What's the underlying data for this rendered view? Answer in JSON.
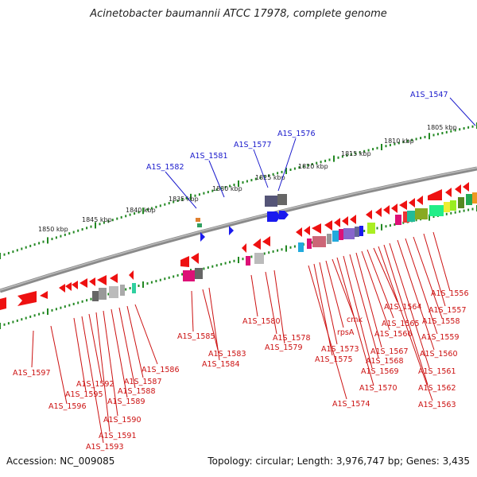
{
  "title": "Acinetobacter baumannii ATCC 17978, complete genome",
  "footer": {
    "accession": "Accession: NC_009085",
    "topology": "Topology: circular; Length: 3,976,747 bp; Genes: 3,435"
  },
  "colors": {
    "backbone": "#808080",
    "scale_ticks": "#228822",
    "forward_labels": "#1a1acc",
    "reverse_labels": "#cc1111",
    "forward_genes": "#1a1aee",
    "reverse_genes": "#ee1111"
  },
  "scale_labels": [
    "1805 kbp",
    "1810 kbp",
    "1815 kbp",
    "1820 kbp",
    "1825 kbp",
    "1830 kbp",
    "1835 kbp",
    "1840 kbp",
    "1845 kbp",
    "1850 kbp"
  ],
  "forward_labels": [
    "A1S_1547",
    "A1S_1576",
    "A1S_1577",
    "A1S_1581",
    "A1S_1582"
  ],
  "reverse_labels": [
    "A1S_1556",
    "A1S_1557",
    "A1S_1558",
    "A1S_1559",
    "A1S_1560",
    "A1S_1561",
    "A1S_1562",
    "A1S_1563",
    "A1S_1564",
    "A1S_1565",
    "A1S_1566",
    "A1S_1567",
    "A1S_1568",
    "A1S_1569",
    "A1S_1570",
    "cmk",
    "rpsA",
    "A1S_1573",
    "A1S_1575",
    "A1S_1574",
    "A1S_1580",
    "A1S_1578",
    "A1S_1579",
    "A1S_1585",
    "A1S_1583",
    "A1S_1584",
    "A1S_1586",
    "A1S_1587",
    "A1S_1588",
    "A1S_1589",
    "A1S_1590",
    "A1S_1591",
    "A1S_1592",
    "A1S_1593",
    "A1S_1595",
    "A1S_1596",
    "A1S_1597"
  ]
}
